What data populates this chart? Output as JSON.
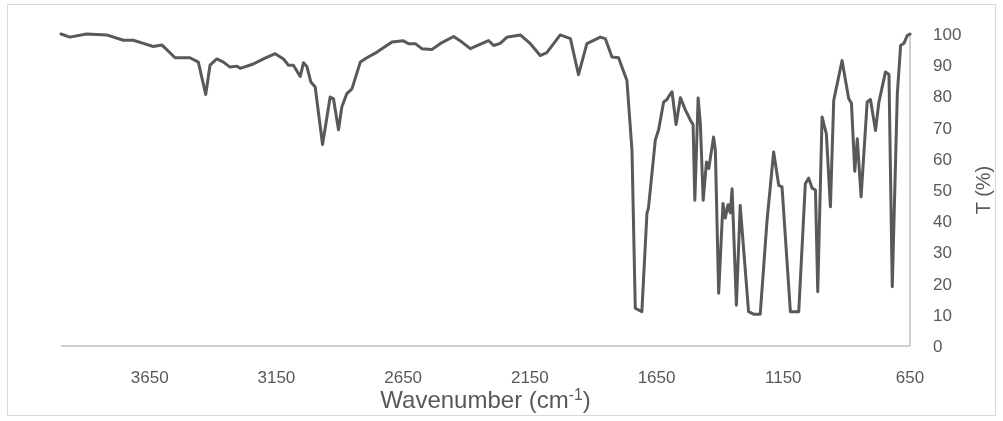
{
  "chart_data": {
    "type": "line",
    "xlabel": "Wavenumber (cm$^{-1}$)",
    "ylabel": "T (%)",
    "xlim": [
      4000,
      650
    ],
    "ylim": [
      0,
      100
    ],
    "xticks": [
      3650,
      3150,
      2650,
      2150,
      1650,
      1150,
      650
    ],
    "yticks": [
      0,
      10,
      20,
      30,
      40,
      50,
      60,
      70,
      80,
      90,
      100
    ],
    "grid": false,
    "series": [
      {
        "color": "#595959",
        "x": [
          4000,
          3965,
          3899,
          3820,
          3754,
          3715,
          3675,
          3636,
          3602,
          3550,
          3491,
          3458,
          3429,
          3412,
          3385,
          3359,
          3333,
          3306,
          3293,
          3241,
          3201,
          3155,
          3122,
          3103,
          3083,
          3056,
          3043,
          3030,
          3014,
          2997,
          2968,
          2938,
          2925,
          2905,
          2892,
          2872,
          2852,
          2819,
          2793,
          2753,
          2694,
          2649,
          2629,
          2602,
          2576,
          2537,
          2504,
          2451,
          2418,
          2385,
          2313,
          2293,
          2267,
          2240,
          2188,
          2148,
          2109,
          2083,
          2030,
          1990,
          1958,
          1925,
          1872,
          1852,
          1826,
          1800,
          1767,
          1747,
          1734,
          1708,
          1688,
          1682,
          1655,
          1642,
          1622,
          1609,
          1602,
          1589,
          1573,
          1556,
          1536,
          1516,
          1506,
          1499,
          1486,
          1477,
          1466,
          1453,
          1444,
          1425,
          1418,
          1405,
          1388,
          1379,
          1368,
          1359,
          1352,
          1335,
          1320,
          1287,
          1267,
          1241,
          1214,
          1188,
          1168,
          1155,
          1122,
          1089,
          1063,
          1050,
          1036,
          1023,
          1014,
          997,
          980,
          964,
          951,
          918,
          892,
          881,
          868,
          858,
          843,
          819,
          806,
          786,
          773,
          747,
          733,
          720,
          700,
          687,
          674,
          661,
          650
        ],
        "values": [
          100,
          99,
          100,
          99.7,
          98,
          98,
          97,
          96,
          96.5,
          92.4,
          92.4,
          91,
          80.6,
          90,
          92,
          91,
          89.4,
          89.7,
          89,
          90.4,
          92,
          93.7,
          92,
          90,
          90,
          86.4,
          90.8,
          89.6,
          84.6,
          83,
          64.6,
          79.8,
          79.3,
          69.3,
          76.6,
          80.9,
          82.4,
          91,
          92.4,
          94.2,
          97.4,
          97.8,
          96.9,
          96.9,
          95.3,
          95,
          96.9,
          99.2,
          97.4,
          95.3,
          97.9,
          96.3,
          97,
          99,
          99.7,
          96.9,
          93.1,
          94,
          99.7,
          98.5,
          87,
          96.9,
          99,
          98.5,
          92.6,
          92.4,
          85.1,
          62.7,
          12.1,
          11,
          42.5,
          44.2,
          66,
          69.3,
          78.2,
          79,
          80,
          81.5,
          71,
          79.6,
          75.6,
          72.3,
          71,
          46.7,
          79.5,
          71,
          46.7,
          59,
          56.9,
          67,
          62.7,
          16.9,
          45.7,
          41,
          45.3,
          42.7,
          50.4,
          13.1,
          45,
          11,
          10.2,
          10.2,
          40.3,
          62.2,
          51.5,
          51,
          11,
          11,
          52,
          53.8,
          50.6,
          50,
          17.4,
          73.4,
          68,
          44.6,
          78.7,
          91.5,
          79.3,
          77.8,
          56,
          66.4,
          47.8,
          78.2,
          79,
          69.1,
          78,
          87.8,
          87,
          19,
          80.9,
          96.3,
          97,
          99.5,
          100
        ]
      }
    ]
  }
}
